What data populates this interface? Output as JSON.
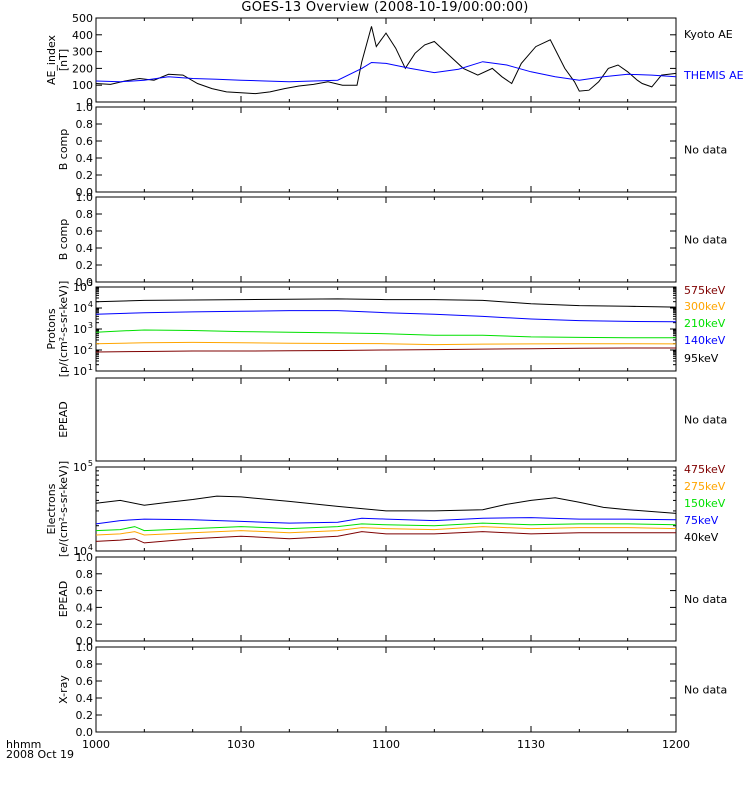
{
  "title": "GOES-13 Overview (2008-10-19/00:00:00)",
  "x_axis": {
    "ticks": [
      "1000",
      "1030",
      "1100",
      "1130",
      "1200"
    ],
    "corner_label_1": "hhmm",
    "corner_label_2": "2008 Oct 19",
    "minutes_range": [
      0,
      120
    ]
  },
  "chart_data": [
    {
      "type": "line",
      "panel": "ae",
      "ylabel": [
        "AE_index",
        "[nT]"
      ],
      "ylim": [
        0,
        500
      ],
      "yticks": [
        "0",
        "100",
        "200",
        "300",
        "400",
        "500"
      ],
      "series": [
        {
          "name": "Kyoto AE",
          "color": "#000000",
          "x": [
            0,
            3,
            6,
            9,
            12,
            15,
            18,
            21,
            24,
            27,
            30,
            33,
            36,
            39,
            42,
            45,
            48,
            51,
            54,
            55,
            57,
            58,
            60,
            62,
            64,
            66,
            68,
            70,
            73,
            76,
            79,
            82,
            84,
            86,
            88,
            91,
            94,
            97,
            99,
            100,
            102,
            104,
            106,
            108,
            110,
            112,
            113,
            115,
            117,
            120
          ],
          "y": [
            110,
            105,
            125,
            140,
            130,
            165,
            160,
            110,
            80,
            60,
            55,
            50,
            60,
            80,
            95,
            105,
            120,
            100,
            100,
            240,
            450,
            330,
            410,
            320,
            200,
            290,
            340,
            360,
            280,
            200,
            160,
            200,
            150,
            110,
            230,
            330,
            370,
            200,
            120,
            65,
            70,
            120,
            200,
            220,
            180,
            130,
            110,
            90,
            160,
            170
          ]
        },
        {
          "name": "THEMIS AE",
          "color": "#0000ff",
          "x": [
            0,
            5,
            10,
            15,
            20,
            25,
            30,
            35,
            40,
            45,
            50,
            55,
            57,
            60,
            65,
            70,
            75,
            80,
            85,
            90,
            95,
            100,
            105,
            110,
            115,
            120
          ],
          "y": [
            125,
            120,
            130,
            150,
            140,
            135,
            130,
            125,
            120,
            125,
            130,
            200,
            235,
            230,
            200,
            175,
            195,
            240,
            220,
            180,
            150,
            130,
            150,
            165,
            160,
            150
          ]
        }
      ]
    },
    {
      "type": "line",
      "panel": "b1",
      "ylabel": [
        "B comp"
      ],
      "ylim": [
        0,
        1
      ],
      "yticks": [
        "0.0",
        "0.2",
        "0.4",
        "0.6",
        "0.8",
        "1.0"
      ],
      "note": "No data",
      "series": []
    },
    {
      "type": "line",
      "panel": "b2",
      "ylabel": [
        "B comp"
      ],
      "ylim": [
        0,
        1
      ],
      "yticks": [
        "0.0",
        "0.2",
        "0.4",
        "0.6",
        "0.8",
        "1.0"
      ],
      "note": "No data",
      "series": []
    },
    {
      "type": "line",
      "panel": "protons",
      "ylabel": [
        "Protons",
        "[p/(cm²-s-sr-keV)]"
      ],
      "log": true,
      "ylim": [
        10,
        100000
      ],
      "yticks_exp": [
        1,
        2,
        3,
        4,
        5
      ],
      "series": [
        {
          "name": "575keV",
          "color": "#7f0000",
          "x": [
            0,
            10,
            20,
            30,
            40,
            50,
            60,
            70,
            80,
            90,
            100,
            110,
            120
          ],
          "y": [
            80,
            85,
            90,
            90,
            92,
            95,
            100,
            105,
            110,
            115,
            120,
            125,
            125
          ]
        },
        {
          "name": "300keV",
          "color": "#ffa500",
          "x": [
            0,
            10,
            20,
            30,
            40,
            50,
            60,
            70,
            80,
            90,
            100,
            110,
            120
          ],
          "y": [
            200,
            220,
            230,
            220,
            210,
            205,
            200,
            180,
            190,
            195,
            200,
            200,
            195
          ]
        },
        {
          "name": "210keV",
          "color": "#00e000",
          "x": [
            0,
            5,
            10,
            20,
            30,
            40,
            50,
            60,
            70,
            80,
            90,
            100,
            110,
            120
          ],
          "y": [
            700,
            800,
            900,
            850,
            750,
            700,
            650,
            600,
            500,
            500,
            420,
            400,
            380,
            380
          ]
        },
        {
          "name": "140keV",
          "color": "#0000ff",
          "x": [
            0,
            10,
            20,
            30,
            40,
            50,
            60,
            70,
            80,
            90,
            100,
            110,
            120
          ],
          "y": [
            5000,
            6000,
            6500,
            7000,
            7500,
            7500,
            6000,
            5000,
            4000,
            3000,
            2500,
            2300,
            2200
          ]
        },
        {
          "name": "95keV",
          "color": "#000000",
          "x": [
            0,
            10,
            20,
            30,
            40,
            50,
            60,
            70,
            80,
            90,
            100,
            110,
            120
          ],
          "y": [
            20000,
            23000,
            24000,
            25000,
            26000,
            27000,
            25000,
            25000,
            23000,
            16000,
            13000,
            12000,
            11000
          ]
        }
      ]
    },
    {
      "type": "line",
      "panel": "epead1",
      "ylabel": [
        "EPEAD"
      ],
      "note": "No data",
      "series": []
    },
    {
      "type": "line",
      "panel": "electrons",
      "ylabel": [
        "Electrons",
        "[e/(cm²-s-sr-keV)]"
      ],
      "log": true,
      "ylim": [
        10000,
        100000
      ],
      "yticks_exp": [
        4,
        5
      ],
      "series": [
        {
          "name": "475keV",
          "color": "#7f0000",
          "x": [
            0,
            5,
            8,
            10,
            20,
            30,
            40,
            50,
            55,
            60,
            70,
            80,
            90,
            100,
            110,
            120
          ],
          "y": [
            13000,
            13500,
            14000,
            12500,
            14000,
            15000,
            14000,
            15000,
            17000,
            16000,
            16000,
            17000,
            16000,
            16500,
            16500,
            16500
          ]
        },
        {
          "name": "275keV",
          "color": "#ffa500",
          "x": [
            0,
            5,
            8,
            10,
            20,
            30,
            40,
            50,
            55,
            60,
            70,
            80,
            90,
            100,
            110,
            120
          ],
          "y": [
            15500,
            16000,
            17000,
            15500,
            16500,
            17500,
            16500,
            17500,
            19000,
            18500,
            18000,
            19500,
            18500,
            19000,
            19000,
            18500
          ]
        },
        {
          "name": "150keV",
          "color": "#00e000",
          "x": [
            0,
            5,
            8,
            10,
            20,
            30,
            40,
            50,
            55,
            60,
            70,
            80,
            90,
            100,
            110,
            120
          ],
          "y": [
            17500,
            18000,
            19500,
            17500,
            18500,
            19500,
            18500,
            19500,
            21000,
            20500,
            20000,
            21500,
            20500,
            21000,
            21000,
            20500
          ]
        },
        {
          "name": "75keV",
          "color": "#0000ff",
          "x": [
            0,
            5,
            10,
            20,
            30,
            40,
            50,
            55,
            60,
            70,
            80,
            90,
            100,
            110,
            120
          ],
          "y": [
            21000,
            23000,
            24000,
            23500,
            22500,
            21500,
            22000,
            24500,
            24000,
            23000,
            24500,
            25000,
            24000,
            24000,
            23500
          ]
        },
        {
          "name": "40keV",
          "color": "#000000",
          "x": [
            0,
            5,
            10,
            15,
            20,
            25,
            30,
            40,
            50,
            60,
            70,
            80,
            85,
            90,
            95,
            100,
            105,
            110,
            120
          ],
          "y": [
            37000,
            40000,
            35000,
            38000,
            41000,
            45000,
            44000,
            39000,
            34000,
            30000,
            30000,
            31000,
            36000,
            40000,
            43000,
            38000,
            33000,
            31000,
            28000
          ]
        }
      ]
    },
    {
      "type": "line",
      "panel": "epead2",
      "ylabel": [
        "EPEAD"
      ],
      "ylim": [
        0,
        1
      ],
      "yticks": [
        "0.0",
        "0.2",
        "0.4",
        "0.6",
        "0.8",
        "1.0"
      ],
      "note": "No data",
      "series": []
    },
    {
      "type": "line",
      "panel": "xray",
      "ylabel": [
        "X-ray"
      ],
      "ylim": [
        0,
        1
      ],
      "yticks": [
        "0.0",
        "0.2",
        "0.4",
        "0.6",
        "0.8",
        "1.0"
      ],
      "note": "No data",
      "series": []
    }
  ]
}
